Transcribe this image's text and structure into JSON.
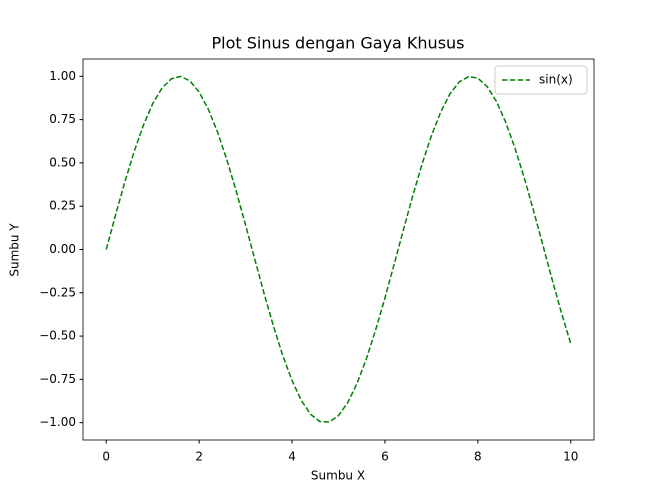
{
  "chart_data": {
    "type": "line",
    "title": "Plot Sinus dengan Gaya Khusus",
    "xlabel": "Sumbu X",
    "ylabel": "Sumbu Y",
    "x": [
      0,
      0.2,
      0.4,
      0.6,
      0.8,
      1.0,
      1.2,
      1.4,
      1.6,
      1.8,
      2.0,
      2.2,
      2.4,
      2.6,
      2.8,
      3.0,
      3.2,
      3.4,
      3.6,
      3.8,
      4.0,
      4.2,
      4.4,
      4.6,
      4.8,
      5.0,
      5.2,
      5.4,
      5.6,
      5.8,
      6.0,
      6.2,
      6.4,
      6.6,
      6.8,
      7.0,
      7.2,
      7.4,
      7.6,
      7.8,
      8.0,
      8.2,
      8.4,
      8.6,
      8.8,
      9.0,
      9.2,
      9.4,
      9.6,
      9.8,
      10.0
    ],
    "series": [
      {
        "name": "sin(x)",
        "color": "#008000",
        "linestyle": "dashed",
        "values": [
          0,
          0.1987,
          0.3894,
          0.5646,
          0.7174,
          0.8415,
          0.932,
          0.9854,
          0.9996,
          0.9738,
          0.9093,
          0.8085,
          0.6755,
          0.5155,
          0.335,
          0.1411,
          -0.0584,
          -0.2555,
          -0.4425,
          -0.6119,
          -0.7568,
          -0.8716,
          -0.9516,
          -0.9937,
          -0.9962,
          -0.9589,
          -0.8835,
          -0.7728,
          -0.6313,
          -0.4646,
          -0.2794,
          -0.0831,
          0.1165,
          0.3115,
          0.4941,
          0.657,
          0.7937,
          0.8987,
          0.9679,
          0.9985,
          0.9894,
          0.9407,
          0.8546,
          0.7344,
          0.5849,
          0.4121,
          0.2229,
          0.0248,
          -0.1743,
          -0.3665,
          -0.544
        ]
      }
    ],
    "xlim": [
      -0.5,
      10.5
    ],
    "ylim": [
      -1.1,
      1.1
    ],
    "xticks": [
      0,
      2,
      4,
      6,
      8,
      10
    ],
    "yticks": [
      {
        "value": -1,
        "label": "−1.00"
      },
      {
        "value": -0.75,
        "label": "−0.75"
      },
      {
        "value": -0.5,
        "label": "−0.50"
      },
      {
        "value": -0.25,
        "label": "−0.25"
      },
      {
        "value": 0,
        "label": "0.00"
      },
      {
        "value": 0.25,
        "label": "0.25"
      },
      {
        "value": 0.5,
        "label": "0.50"
      },
      {
        "value": 0.75,
        "label": "0.75"
      },
      {
        "value": 1,
        "label": "1.00"
      }
    ],
    "legend": "upper right",
    "grid": false
  }
}
